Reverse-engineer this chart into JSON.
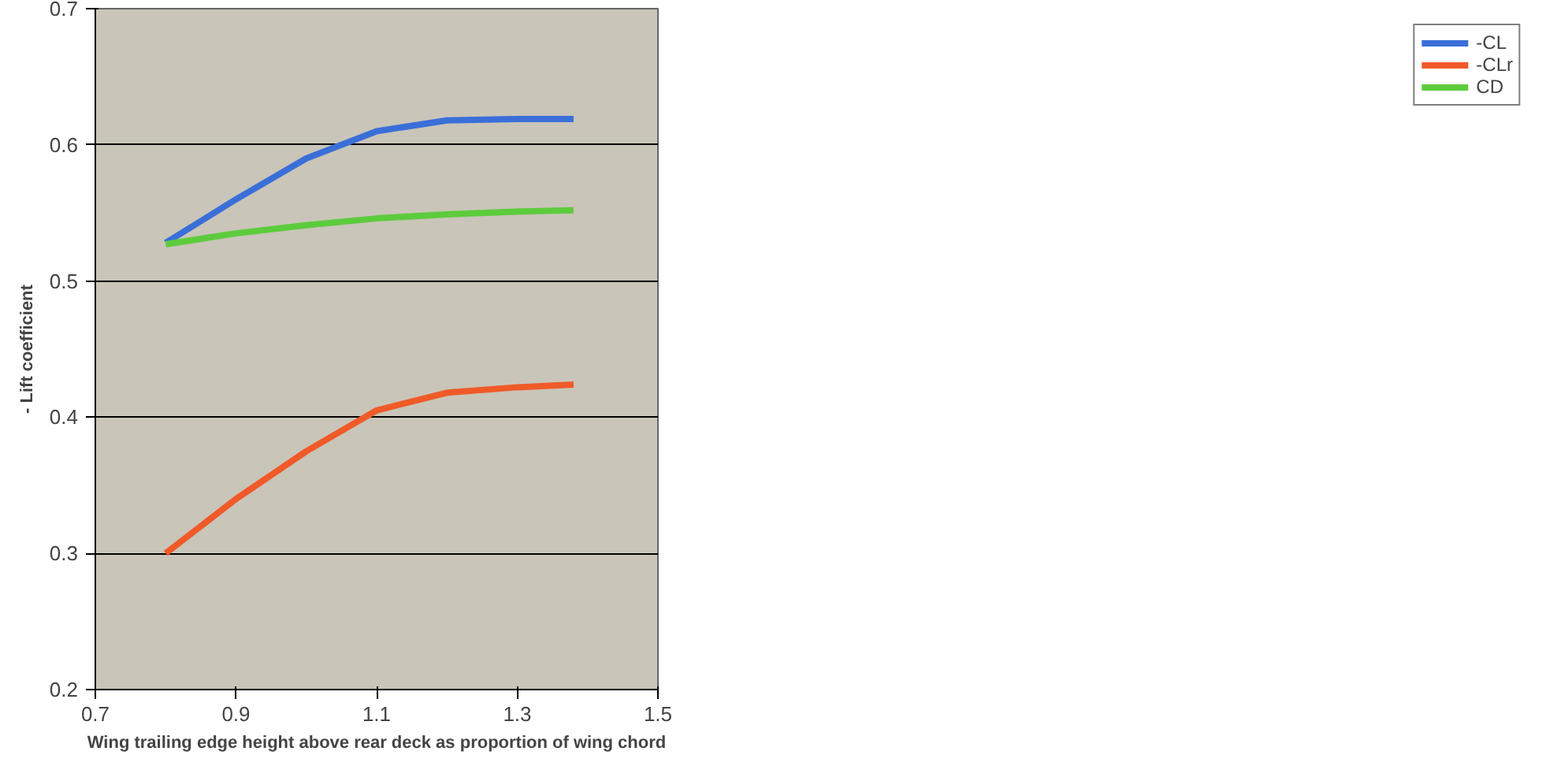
{
  "chart_data": {
    "type": "line",
    "xlabel": "Wing trailing edge height above rear deck as proportion of wing chord",
    "ylabel": "- Lift coefficient",
    "x": [
      0.8,
      0.9,
      1.0,
      1.1,
      1.2,
      1.3,
      1.38
    ],
    "series": [
      {
        "name": "-CL",
        "color": "#3a6fd8",
        "values": [
          0.528,
          0.56,
          0.59,
          0.61,
          0.618,
          0.619,
          0.619
        ]
      },
      {
        "name": "-CLr",
        "color": "#f05a28",
        "values": [
          0.3,
          0.34,
          0.375,
          0.405,
          0.418,
          0.422,
          0.424
        ]
      },
      {
        "name": "CD",
        "color": "#5ccc3c",
        "values": [
          0.527,
          0.535,
          0.541,
          0.546,
          0.549,
          0.551,
          0.552
        ]
      }
    ],
    "xlim": [
      0.7,
      1.5
    ],
    "xticks": [
      0.7,
      0.9,
      1.1,
      1.3,
      1.5
    ],
    "ylim": [
      0.2,
      0.7
    ],
    "yticks": [
      0.2,
      0.3,
      0.4,
      0.5,
      0.6,
      0.7
    ],
    "grid": "y",
    "legend": "right",
    "marker": "none",
    "line_style": "solid"
  }
}
